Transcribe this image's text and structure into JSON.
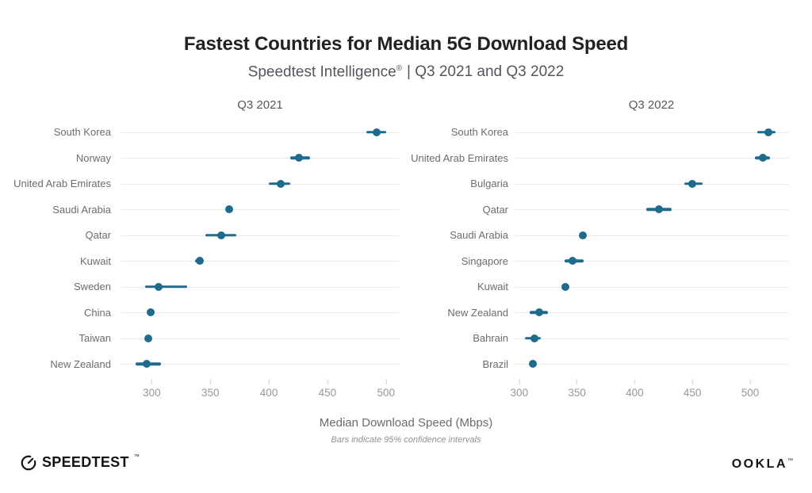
{
  "header": {
    "title": "Fastest Countries for Median 5G Download Speed",
    "subtitle_brand": "Speedtest Intelligence",
    "subtitle_reg": "®",
    "subtitle_rest": "| Q3 2021 and Q3 2022"
  },
  "axis_label": "Median Download Speed (Mbps)",
  "footnote": "Bars indicate 95% confidence intervals",
  "footer": {
    "speedtest_wordmark": "SPEEDTEST",
    "speedtest_tm": "™",
    "ookla_wordmark": "OOKLA",
    "ookla_tm": "™"
  },
  "colors": {
    "dot": "#1f6b8e",
    "ci_bar": "#1f6b8e",
    "gridline": "#e9e9ef",
    "title": "#222226",
    "subtitle": "#55565c",
    "label": "#6b6c70",
    "tick": "#97979c",
    "tick_mark": "#cfd0d6",
    "logo": "#141414"
  },
  "chart_data": [
    {
      "type": "scatter",
      "title": "Q3 2021",
      "xlabel": "Median Download Speed (Mbps)",
      "unit": "Mbps",
      "xlim": [
        274,
        511
      ],
      "ticks": [
        300,
        350,
        400,
        450,
        500
      ],
      "grid": true,
      "error_bars": "95% confidence interval",
      "points": [
        {
          "label": "South Korea",
          "value": 492,
          "ci": [
            483,
            500
          ]
        },
        {
          "label": "Norway",
          "value": 426,
          "ci": [
            418,
            435
          ]
        },
        {
          "label": "United Arab Emirates",
          "value": 410,
          "ci": [
            400,
            418
          ]
        },
        {
          "label": "Saudi Arabia",
          "value": 366,
          "ci": [
            364,
            368
          ]
        },
        {
          "label": "Qatar",
          "value": 359,
          "ci": [
            346,
            372
          ]
        },
        {
          "label": "Kuwait",
          "value": 341,
          "ci": [
            337,
            344
          ]
        },
        {
          "label": "Sweden",
          "value": 306,
          "ci": [
            294,
            330
          ]
        },
        {
          "label": "China",
          "value": 299,
          "ci": [
            297,
            301
          ]
        },
        {
          "label": "Taiwan",
          "value": 297,
          "ci": [
            295,
            299
          ]
        },
        {
          "label": "New Zealand",
          "value": 296,
          "ci": [
            286,
            308
          ]
        }
      ]
    },
    {
      "type": "scatter",
      "title": "Q3 2022",
      "xlabel": "Median Download Speed (Mbps)",
      "unit": "Mbps",
      "xlim": [
        296,
        533
      ],
      "ticks": [
        300,
        350,
        400,
        450,
        500
      ],
      "grid": true,
      "error_bars": "95% confidence interval",
      "points": [
        {
          "label": "South Korea",
          "value": 516,
          "ci": [
            506,
            522
          ]
        },
        {
          "label": "United Arab Emirates",
          "value": 511,
          "ci": [
            504,
            517
          ]
        },
        {
          "label": "Bulgaria",
          "value": 450,
          "ci": [
            443,
            459
          ]
        },
        {
          "label": "Qatar",
          "value": 421,
          "ci": [
            410,
            432
          ]
        },
        {
          "label": "Saudi Arabia",
          "value": 355,
          "ci": [
            353,
            357
          ]
        },
        {
          "label": "Singapore",
          "value": 346,
          "ci": [
            339,
            356
          ]
        },
        {
          "label": "Kuwait",
          "value": 340,
          "ci": [
            338,
            342
          ]
        },
        {
          "label": "New Zealand",
          "value": 317,
          "ci": [
            309,
            325
          ]
        },
        {
          "label": "Bahrain",
          "value": 313,
          "ci": [
            305,
            319
          ]
        },
        {
          "label": "Brazil",
          "value": 312,
          "ci": [
            310,
            314
          ]
        }
      ]
    }
  ]
}
